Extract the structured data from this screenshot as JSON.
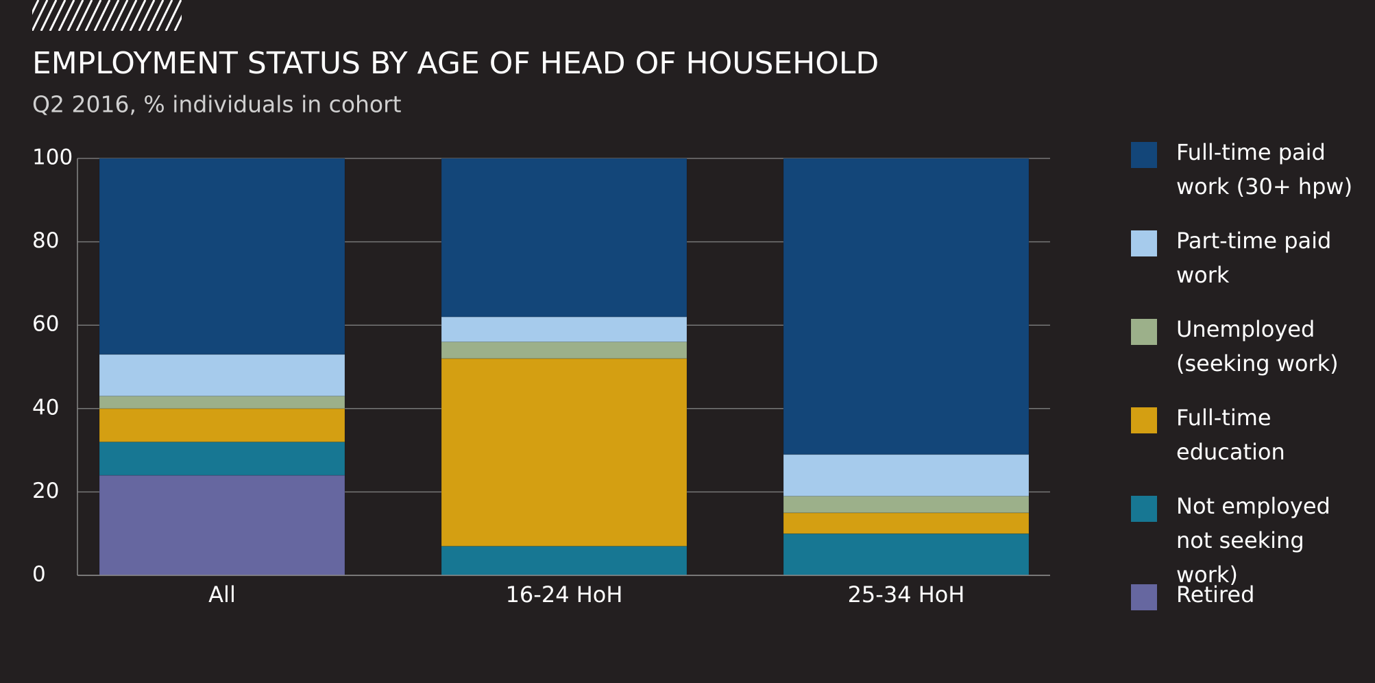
{
  "chart_data": {
    "type": "stacked-bar",
    "title": "EMPLOYMENT STATUS BY AGE OF HEAD OF HOUSEHOLD",
    "subtitle": "Q2 2016, % individuals in cohort",
    "categories": [
      "All",
      "16-24 HoH",
      "25-34 HoH"
    ],
    "series": [
      {
        "name": "Retired",
        "color": "#6667a0",
        "values": [
          24,
          0,
          0
        ]
      },
      {
        "name": "Not employed not seeking work)",
        "color": "#177793",
        "values": [
          8,
          7,
          10
        ]
      },
      {
        "name": "Full-time education",
        "color": "#d49f12",
        "values": [
          8,
          45,
          5
        ]
      },
      {
        "name": "Unemployed (seeking work)",
        "color": "#9cb08a",
        "values": [
          3,
          4,
          4
        ]
      },
      {
        "name": "Part-time paid work",
        "color": "#a6cbec",
        "values": [
          10,
          6,
          10
        ]
      },
      {
        "name": "Full-time paid work (30+ hpw)",
        "color": "#134679",
        "values": [
          47,
          38,
          71
        ]
      }
    ],
    "ylim": [
      0,
      100
    ],
    "yticks": [
      0,
      20,
      40,
      60,
      80,
      100
    ],
    "grid": true
  }
}
